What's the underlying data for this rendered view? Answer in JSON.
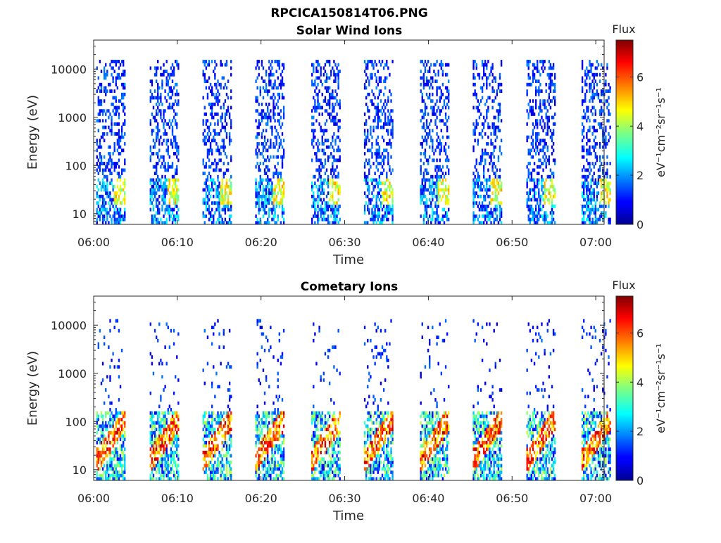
{
  "figure": {
    "title": "RPCICA150814T06.PNG"
  },
  "chart_data": [
    {
      "type": "heatmap",
      "title": "Solar Wind Ions",
      "xlabel": "Time",
      "ylabel": "Energy (eV)",
      "yscale": "log",
      "ylim": [
        6,
        40000
      ],
      "xlim": [
        "06:00",
        "07:01"
      ],
      "x_ticks": [
        "06:00",
        "06:10",
        "06:20",
        "06:30",
        "06:40",
        "06:50",
        "07:00"
      ],
      "y_ticks": [
        {
          "value": 10,
          "label": "10"
        },
        {
          "value": 100,
          "label": "100"
        },
        {
          "value": 1000,
          "label": "1000"
        },
        {
          "value": 10000,
          "label": "10000"
        }
      ],
      "colorbar": {
        "label": "Flux",
        "units": "eV⁻¹cm⁻²sr⁻¹s⁻¹",
        "range": [
          0,
          7.5
        ],
        "colormap": "jet",
        "ticks": [
          0,
          2,
          4,
          6
        ]
      },
      "scan_start_minutes": [
        0.3,
        6.7,
        13.0,
        19.3,
        26.0,
        32.3,
        39.0,
        45.3,
        51.7,
        58.3
      ],
      "sweep_duration_minutes": 3.5,
      "peak_flux_energy_eV": 30,
      "peak_flux": 5.5,
      "high_energy_band_eV": [
        500,
        15000
      ],
      "notes": "Repeated energy sweeps; sparse low-flux (blue) counts spread 10 eV–30 keV, with moderate (cyan–yellow) flux concentrated near 15–60 eV at the end of each sweep."
    },
    {
      "type": "heatmap",
      "title": "Cometary Ions",
      "xlabel": "Time",
      "ylabel": "Energy (eV)",
      "yscale": "log",
      "ylim": [
        6,
        40000
      ],
      "xlim": [
        "06:00",
        "07:01"
      ],
      "x_ticks": [
        "06:00",
        "06:10",
        "06:20",
        "06:30",
        "06:40",
        "06:50",
        "07:00"
      ],
      "y_ticks": [
        {
          "value": 10,
          "label": "10"
        },
        {
          "value": 100,
          "label": "100"
        },
        {
          "value": 1000,
          "label": "1000"
        },
        {
          "value": 10000,
          "label": "10000"
        }
      ],
      "colorbar": {
        "label": "Flux",
        "units": "eV⁻¹cm⁻²sr⁻¹s⁻¹",
        "range": [
          0,
          7.5
        ],
        "colormap": "jet",
        "ticks": [
          0,
          2,
          4,
          6
        ]
      },
      "scan_start_minutes": [
        0.3,
        6.7,
        13.0,
        19.3,
        26.0,
        32.3,
        39.0,
        45.3,
        51.7,
        58.3
      ],
      "sweep_duration_minutes": 3.5,
      "intense_band_eV": [
        8,
        150
      ],
      "peak_flux_energy_eV": 30,
      "peak_flux": 7.2,
      "notes": "Intense (orange–red) cometary ion flux between ~10 and 100 eV recurring every sweep, with sparse blue counts extending to ~10 keV."
    }
  ]
}
